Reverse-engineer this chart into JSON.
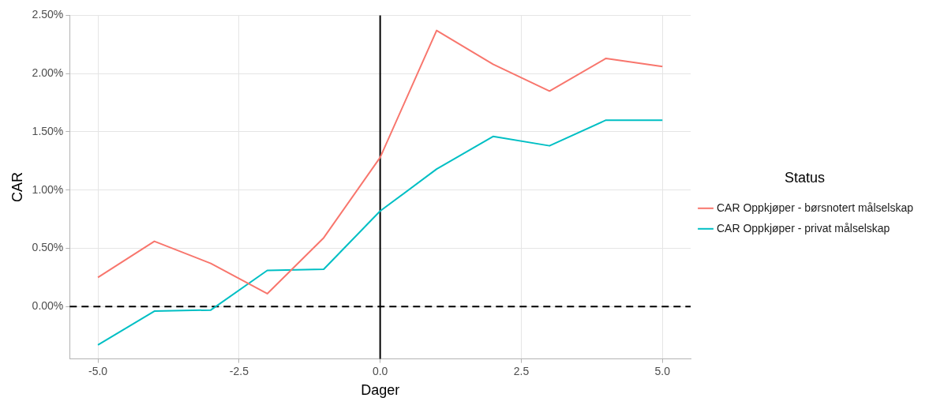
{
  "chart_data": {
    "type": "line",
    "xlabel": "Dager",
    "ylabel": "CAR",
    "legend_title": "Status",
    "legend": "right",
    "grid": true,
    "line_style": "solid",
    "marker": "none",
    "x": [
      -5,
      -4,
      -3,
      -2,
      -1,
      0,
      1,
      2,
      3,
      4,
      5
    ],
    "xlim": [
      -5.5,
      5.5
    ],
    "xticks": [
      {
        "value": -5,
        "label": "-5.0"
      },
      {
        "value": -2.5,
        "label": "-2.5"
      },
      {
        "value": 0,
        "label": "0.0"
      },
      {
        "value": 2.5,
        "label": "2.5"
      },
      {
        "value": 5,
        "label": "5.0"
      }
    ],
    "ylim": [
      -0.45,
      2.5
    ],
    "yticks": [
      {
        "value": 0,
        "label": "0.00%"
      },
      {
        "value": 0.5,
        "label": "0.50%"
      },
      {
        "value": 1,
        "label": "1.00%"
      },
      {
        "value": 1.5,
        "label": "1.50%"
      },
      {
        "value": 2,
        "label": "2.00%"
      },
      {
        "value": 2.5,
        "label": "2.50%"
      }
    ],
    "series": [
      {
        "name": "CAR Oppkjøper - børsnotert målselskap",
        "color": "#f8766d",
        "values": [
          0.25,
          0.56,
          0.37,
          0.11,
          0.59,
          1.28,
          2.37,
          2.08,
          1.85,
          2.13,
          2.06
        ]
      },
      {
        "name": "CAR Oppkjøper - privat målselskap",
        "color": "#00bfc4",
        "values": [
          -0.33,
          -0.04,
          -0.03,
          0.31,
          0.32,
          0.82,
          1.18,
          1.46,
          1.38,
          1.6,
          1.6
        ]
      }
    ],
    "ref_lines": [
      {
        "axis": "y",
        "value": 0,
        "color": "#000000",
        "line_style": "dashed"
      },
      {
        "axis": "x",
        "value": 0,
        "color": "#000000",
        "line_style": "solid"
      }
    ]
  }
}
